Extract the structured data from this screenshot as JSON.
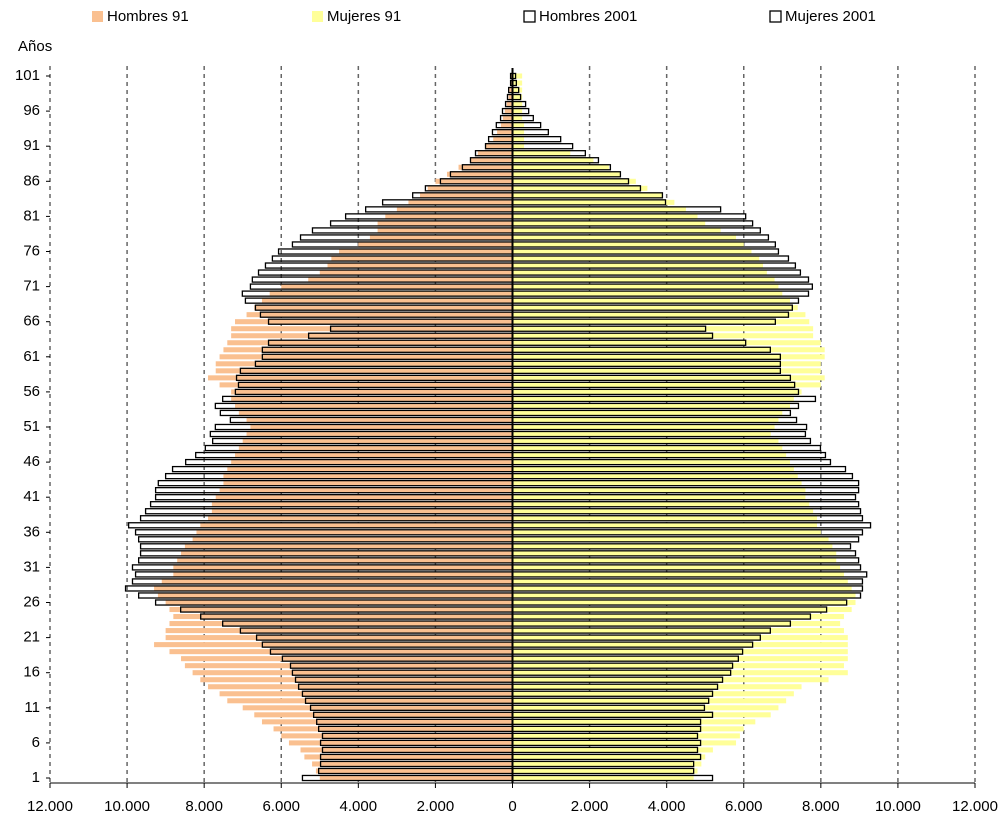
{
  "chart_data": {
    "type": "pyramid",
    "y_label": "Años",
    "categories": [
      "1",
      null,
      null,
      null,
      null,
      "6",
      null,
      null,
      null,
      null,
      "11",
      null,
      null,
      null,
      null,
      "16",
      null,
      null,
      null,
      null,
      "21",
      null,
      null,
      null,
      null,
      "26",
      null,
      null,
      null,
      null,
      "31",
      null,
      null,
      null,
      null,
      "36",
      null,
      null,
      null,
      null,
      "41",
      null,
      null,
      null,
      null,
      "46",
      null,
      null,
      null,
      null,
      "51",
      null,
      null,
      null,
      null,
      "56",
      null,
      null,
      null,
      null,
      "61",
      null,
      null,
      null,
      null,
      "66",
      null,
      null,
      null,
      null,
      "71",
      null,
      null,
      null,
      null,
      "76",
      null,
      null,
      null,
      null,
      "81",
      null,
      null,
      null,
      null,
      "86",
      null,
      null,
      null,
      null,
      "91",
      null,
      null,
      null,
      null,
      "96",
      null,
      null,
      null,
      null,
      "101"
    ],
    "series": [
      {
        "name": "Hombres 91",
        "color": "#fac090",
        "style": "filled",
        "values": [
          -5000,
          -5100,
          -5200,
          -5400,
          -5500,
          -5800,
          -6000,
          -6200,
          -6500,
          -6700,
          -7000,
          -7400,
          -7600,
          -7900,
          -8100,
          -8300,
          -8500,
          -8600,
          -8900,
          -9300,
          -9000,
          -9000,
          -8900,
          -8800,
          -8900,
          -9000,
          -9200,
          -9300,
          -9100,
          -8800,
          -8800,
          -8700,
          -8600,
          -8500,
          -8300,
          -8200,
          -8100,
          -7900,
          -7800,
          -7800,
          -7700,
          -7600,
          -7500,
          -7500,
          -7400,
          -7300,
          -7200,
          -7100,
          -7000,
          -6900,
          -6800,
          -6900,
          -7100,
          -7200,
          -7300,
          -7300,
          -7600,
          -7900,
          -7700,
          -7700,
          -7600,
          -7500,
          -7400,
          -7300,
          -7300,
          -7200,
          -6900,
          -6700,
          -6500,
          -6300,
          -6000,
          -5300,
          -5000,
          -4800,
          -4700,
          -4500,
          -4000,
          -3700,
          -3500,
          -3500,
          -3300,
          -3000,
          -2700,
          -2400,
          -2200,
          -2000,
          -1700,
          -1400,
          -1100,
          -900,
          -700,
          -500,
          -400,
          -300,
          -250,
          -200,
          -150,
          -100,
          -80,
          -60,
          -50
        ]
      },
      {
        "name": "Mujeres 91",
        "color": "#ffff99",
        "style": "filled",
        "values": [
          4700,
          4800,
          4900,
          5000,
          5200,
          5800,
          5900,
          6000,
          6300,
          6700,
          6900,
          7100,
          7300,
          7500,
          8200,
          8700,
          8600,
          8700,
          8700,
          8700,
          8700,
          8600,
          8500,
          8600,
          8800,
          8900,
          8900,
          8800,
          8700,
          8600,
          8500,
          8400,
          8400,
          8300,
          8200,
          8000,
          7900,
          7900,
          7800,
          7700,
          7600,
          7600,
          7500,
          7400,
          7300,
          7200,
          7100,
          7000,
          6900,
          6700,
          6800,
          6900,
          7000,
          7200,
          7300,
          7500,
          8000,
          8100,
          8000,
          8000,
          8100,
          8100,
          8000,
          7800,
          7800,
          7700,
          7600,
          7400,
          7200,
          7000,
          6900,
          6800,
          6600,
          6500,
          6400,
          6200,
          6000,
          5800,
          5400,
          5000,
          4800,
          4500,
          4200,
          3900,
          3500,
          3200,
          2800,
          2500,
          2100,
          1500,
          300,
          300,
          300,
          300,
          250,
          250,
          250,
          250,
          250,
          250,
          250
        ]
      },
      {
        "name": "Hombres 2001",
        "color": "#000000",
        "style": "outline",
        "values": [
          -5450,
          -5030,
          -4980,
          -4980,
          -4930,
          -4980,
          -4930,
          -5030,
          -5080,
          -5160,
          -5240,
          -5370,
          -5450,
          -5550,
          -5630,
          -5710,
          -5760,
          -5970,
          -6280,
          -6490,
          -6640,
          -7060,
          -7520,
          -8090,
          -8610,
          -9260,
          -9700,
          -10040,
          -9860,
          -9780,
          -9860,
          -9700,
          -9650,
          -9650,
          -9700,
          -9780,
          -9960,
          -9650,
          -9520,
          -9390,
          -9260,
          -9260,
          -9190,
          -9000,
          -8820,
          -8480,
          -8220,
          -7970,
          -7780,
          -7840,
          -7710,
          -7320,
          -7580,
          -7710,
          -7520,
          -7190,
          -7110,
          -7160,
          -7060,
          -6670,
          -6490,
          -6490,
          -6330,
          -5290,
          -4720,
          -6330,
          -6540,
          -6670,
          -6930,
          -7010,
          -6800,
          -6750,
          -6590,
          -6410,
          -6230,
          -6070,
          -5710,
          -5500,
          -5190,
          -4720,
          -4330,
          -3810,
          -3370,
          -2590,
          -2260,
          -1870,
          -1610,
          -1300,
          -1090,
          -960,
          -700,
          -620,
          -520,
          -420,
          -310,
          -260,
          -180,
          -130,
          -100,
          -50,
          -50
        ]
      },
      {
        "name": "Mujeres 2001",
        "color": "#000000",
        "style": "outline",
        "values": [
          5190,
          4700,
          4700,
          4880,
          4800,
          4880,
          4800,
          4880,
          4880,
          5190,
          4980,
          5090,
          5190,
          5320,
          5450,
          5660,
          5710,
          5860,
          5970,
          6230,
          6430,
          6690,
          7210,
          7730,
          8150,
          8670,
          9030,
          9080,
          9080,
          9190,
          9030,
          8980,
          8900,
          8770,
          8980,
          9080,
          9290,
          9080,
          9030,
          8980,
          8900,
          8980,
          8980,
          8820,
          8640,
          8250,
          8120,
          7990,
          7730,
          7600,
          7630,
          7370,
          7210,
          7420,
          7860,
          7420,
          7320,
          7210,
          6950,
          6950,
          6950,
          6690,
          6050,
          5190,
          5010,
          6820,
          7160,
          7260,
          7420,
          7680,
          7780,
          7680,
          7470,
          7340,
          7160,
          6900,
          6820,
          6640,
          6430,
          6230,
          6050,
          5400,
          3970,
          3890,
          3320,
          3010,
          2800,
          2540,
          2230,
          1890,
          1560,
          1250,
          930,
          730,
          540,
          420,
          340,
          210,
          160,
          100,
          80
        ]
      }
    ],
    "xlim": [
      -12000,
      12000
    ],
    "xticks": [
      {
        "value": -12000,
        "label": "12.000"
      },
      {
        "value": -10000,
        "label": "10.000"
      },
      {
        "value": -8000,
        "label": "8.000"
      },
      {
        "value": -6000,
        "label": "6.000"
      },
      {
        "value": -4000,
        "label": "4.000"
      },
      {
        "value": -2000,
        "label": "2.000"
      },
      0,
      {
        "value": 2000,
        "label": "2.000"
      },
      {
        "value": 4000,
        "label": "4.000"
      },
      {
        "value": 6000,
        "label": "6.000"
      },
      {
        "value": 8000,
        "label": "8.000"
      },
      {
        "value": 10000,
        "label": "10.000"
      },
      {
        "value": 12000,
        "label": "12.000"
      }
    ],
    "grid": true,
    "legend": "top"
  }
}
